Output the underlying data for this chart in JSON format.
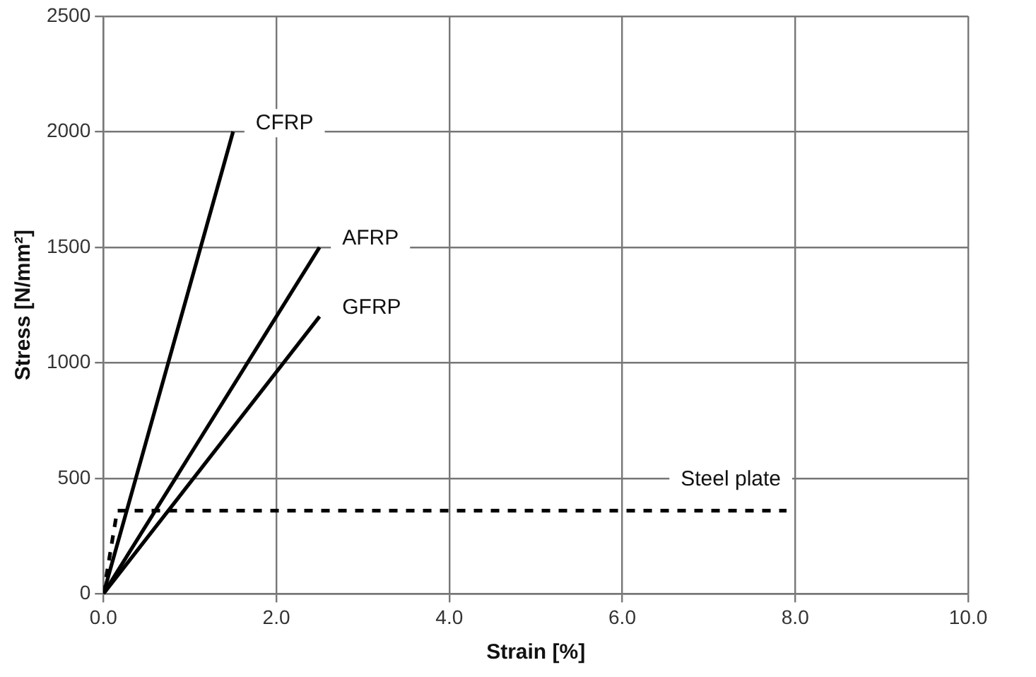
{
  "chart_data": {
    "type": "line",
    "xlabel": "Strain [%]",
    "ylabel": "Stress [N/mm²]",
    "xlim": [
      0,
      10
    ],
    "xticks": [
      {
        "value": 0,
        "label": "0.0"
      },
      {
        "value": 2,
        "label": "2.0"
      },
      {
        "value": 4,
        "label": "4.0"
      },
      {
        "value": 6,
        "label": "6.0"
      },
      {
        "value": 8,
        "label": "8.0"
      },
      {
        "value": 10,
        "label": "10.0"
      }
    ],
    "ylim": [
      0,
      2500
    ],
    "yticks": [
      0,
      500,
      1000,
      1500,
      2000,
      2500
    ],
    "grid": true,
    "legend": false,
    "marker": "none",
    "series": [
      {
        "name": "CFRP",
        "color": "#000000",
        "x": [
          0,
          1.5
        ],
        "values": [
          0,
          2000
        ],
        "line_style": "solid"
      },
      {
        "name": "AFRP",
        "color": "#000000",
        "x": [
          0,
          2.5
        ],
        "values": [
          0,
          1500
        ],
        "line_style": "solid"
      },
      {
        "name": "GFRP",
        "color": "#000000",
        "x": [
          0,
          2.5
        ],
        "values": [
          0,
          1200
        ],
        "line_style": "solid"
      },
      {
        "name": "Steel plate",
        "color": "#000000",
        "x": [
          0,
          0.16,
          7.9
        ],
        "values": [
          0,
          360,
          360
        ],
        "line_style": "dashed"
      }
    ]
  }
}
